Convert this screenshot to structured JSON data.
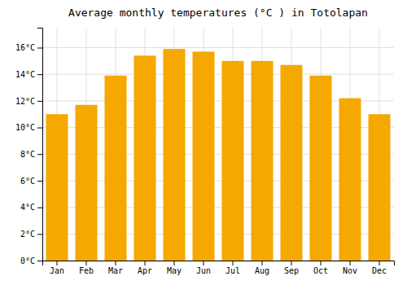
{
  "chart_data": {
    "type": "bar",
    "title": "Average monthly temperatures (°C ) in Totolapan",
    "categories": [
      "Jan",
      "Feb",
      "Mar",
      "Apr",
      "May",
      "Jun",
      "Jul",
      "Aug",
      "Sep",
      "Oct",
      "Nov",
      "Dec"
    ],
    "values": [
      11.0,
      11.7,
      13.9,
      15.4,
      15.9,
      15.7,
      15.0,
      15.0,
      14.7,
      13.9,
      12.2,
      11.0
    ],
    "color": "#F5A800",
    "ylim": [
      0,
      17.5
    ],
    "yticks": [
      {
        "value": 0,
        "label": "0°C"
      },
      {
        "value": 2,
        "label": "2°C"
      },
      {
        "value": 4,
        "label": "4°C"
      },
      {
        "value": 6,
        "label": "6°C"
      },
      {
        "value": 8,
        "label": "8°C"
      },
      {
        "value": 10,
        "label": "10°C"
      },
      {
        "value": 12,
        "label": "12°C"
      },
      {
        "value": 14,
        "label": "14°C"
      },
      {
        "value": 16,
        "label": "16°C"
      }
    ],
    "grid": true
  }
}
